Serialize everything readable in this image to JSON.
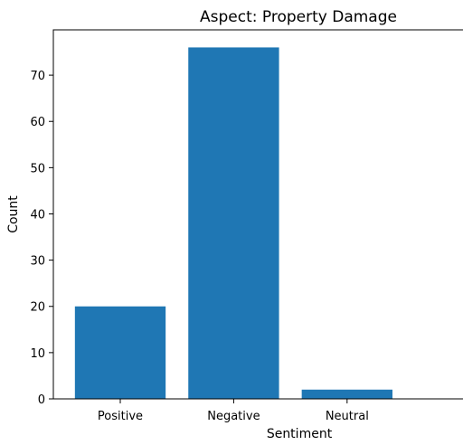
{
  "chart_data": {
    "type": "bar",
    "title": "Aspect: Property Damage",
    "xlabel": "Sentiment",
    "ylabel": "Count",
    "categories": [
      "Positive",
      "Negative",
      "Neutral"
    ],
    "values": [
      20,
      76,
      2
    ],
    "ylim": [
      0,
      79.8
    ],
    "yticks": [
      0,
      10,
      20,
      30,
      40,
      50,
      60,
      70
    ],
    "bar_color": "#1f77b4",
    "grid": false,
    "legend": "none"
  }
}
